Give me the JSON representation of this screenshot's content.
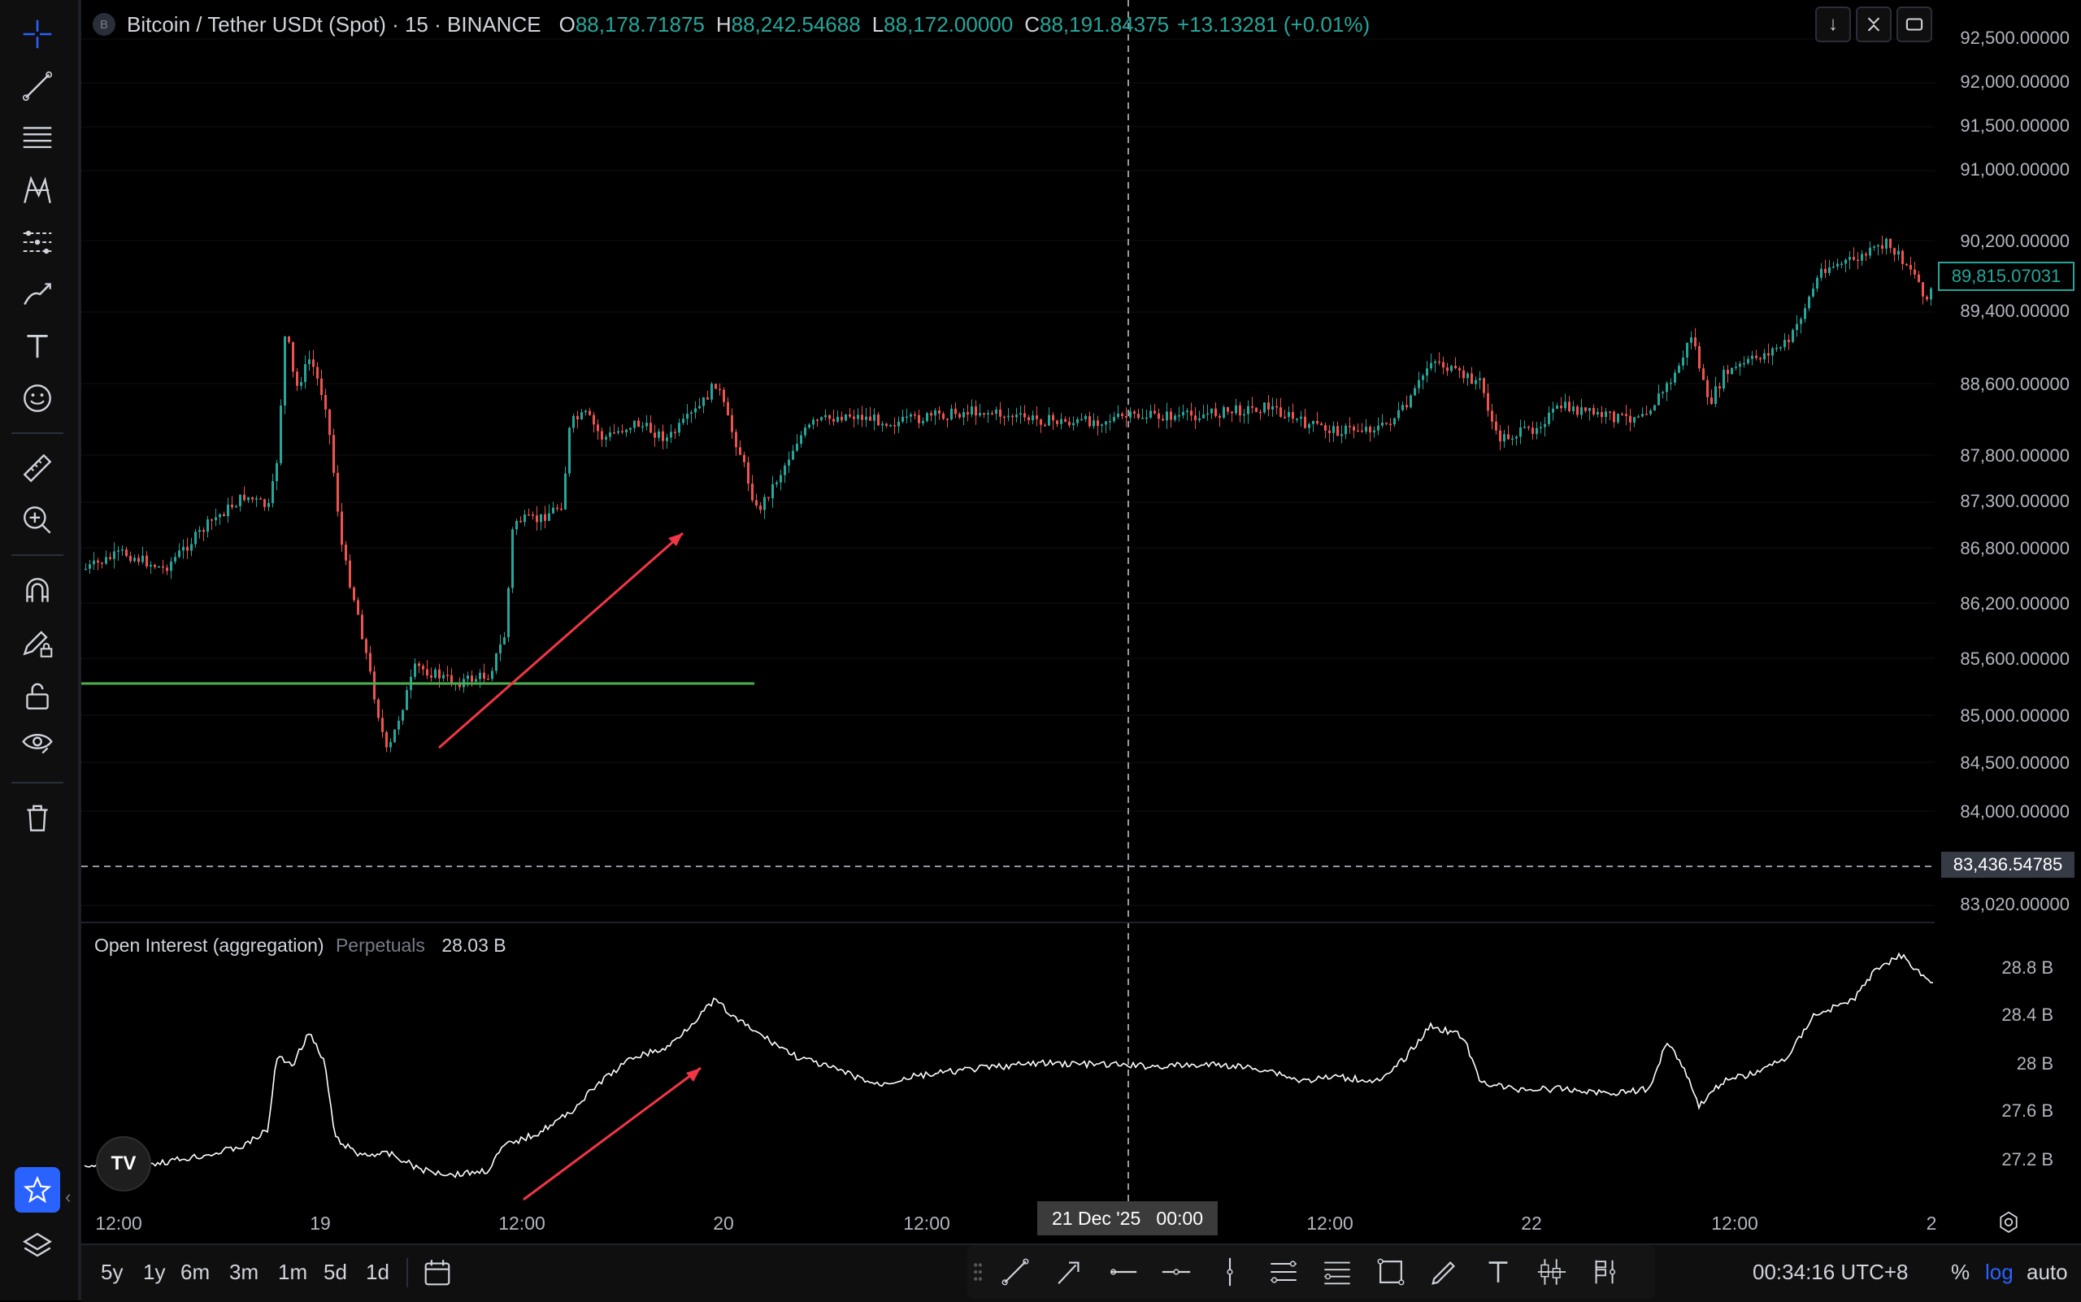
{
  "header": {
    "logo_letter": "B",
    "symbol": "Bitcoin / Tether USDt (Spot) · 15 · BINANCE",
    "open_key": "O",
    "open": "88,178.71875",
    "high_key": "H",
    "high": "88,242.54688",
    "low_key": "L",
    "low": "88,172.00000",
    "close_key": "C",
    "close": "88,191.84375",
    "change": "+13.13281 (+0.01%)"
  },
  "price_axis": {
    "labels": [
      "92,500.00000",
      "92,000.00000",
      "91,500.00000",
      "91,000.00000",
      "90,200.00000",
      "89,400.00000",
      "88,600.00000",
      "87,800.00000",
      "87,300.00000",
      "86,800.00000",
      "86,200.00000",
      "85,600.00000",
      "85,000.00000",
      "84,500.00000",
      "84,000.00000",
      "83,020.00000"
    ],
    "last_price": "89,815.07031",
    "cursor_price": "83,436.54785"
  },
  "oi_pane": {
    "title": "Open Interest (aggregation)",
    "subtitle": "Perpetuals",
    "value": "28.03 B",
    "axis_labels": [
      "28.8 B",
      "28.4 B",
      "28 B",
      "27.6 B",
      "27.2 B"
    ]
  },
  "time_axis": {
    "labels": [
      "12:00",
      "19",
      "12:00",
      "20",
      "12:00",
      "12:00",
      "22",
      "12:00",
      "2"
    ],
    "cursor_date": "21 Dec '25   00:00"
  },
  "bottom_bar": {
    "ranges": [
      "5y",
      "1y",
      "6m",
      "3m",
      "1m",
      "5d",
      "1d"
    ],
    "clock": "00:34:16 UTC+8",
    "percent": "%",
    "log": "log",
    "auto": "auto"
  },
  "watermark": "TV",
  "colors": {
    "up": "#26a69a",
    "down": "#ef5350",
    "horizontal_line": "#4caf50",
    "arrow": "#f23645",
    "accent": "#2962ff"
  }
}
